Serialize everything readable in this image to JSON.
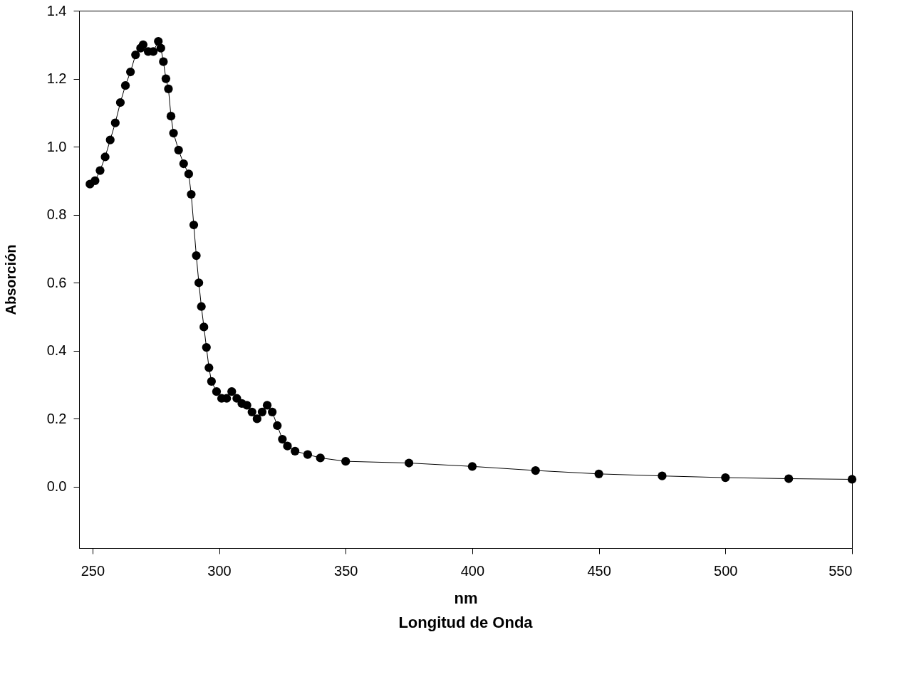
{
  "chart_data": {
    "type": "line",
    "xlabel": "nm",
    "ylabel": "Absorción",
    "annotations": [
      "Longitud de Onda"
    ],
    "x": [
      249,
      251,
      253,
      255,
      257,
      259,
      261,
      263,
      265,
      267,
      269,
      270,
      272,
      274,
      276,
      277,
      278,
      279,
      280,
      281,
      282,
      284,
      286,
      288,
      289,
      290,
      291,
      292,
      293,
      294,
      295,
      296,
      297,
      299,
      301,
      303,
      305,
      307,
      309,
      311,
      313,
      315,
      317,
      319,
      321,
      323,
      325,
      327,
      330,
      335,
      340,
      350,
      375,
      400,
      425,
      450,
      475,
      500,
      525,
      550
    ],
    "series": [
      {
        "color": "#000000",
        "values": [
          0.89,
          0.9,
          0.93,
          0.97,
          1.02,
          1.07,
          1.13,
          1.18,
          1.22,
          1.27,
          1.29,
          1.3,
          1.28,
          1.28,
          1.31,
          1.29,
          1.25,
          1.2,
          1.17,
          1.09,
          1.04,
          0.99,
          0.95,
          0.92,
          0.86,
          0.77,
          0.68,
          0.6,
          0.53,
          0.47,
          0.41,
          0.35,
          0.31,
          0.28,
          0.26,
          0.26,
          0.28,
          0.26,
          0.245,
          0.24,
          0.22,
          0.2,
          0.22,
          0.24,
          0.22,
          0.18,
          0.14,
          0.12,
          0.105,
          0.095,
          0.085,
          0.075,
          0.07,
          0.06,
          0.048,
          0.038,
          0.032,
          0.027,
          0.024,
          0.022
        ]
      }
    ],
    "xlim": [
      244.7,
      550
    ],
    "ylim": [
      -0.18,
      1.4
    ],
    "xticks": [
      250,
      300,
      350,
      400,
      450,
      500,
      550
    ],
    "yticks": [
      {
        "value": 0,
        "label": "0.0"
      },
      {
        "value": 0.2,
        "label": "0.2"
      },
      {
        "value": 0.4,
        "label": "0.4"
      },
      {
        "value": 0.6,
        "label": "0.6"
      },
      {
        "value": 0.8,
        "label": "0.8"
      },
      {
        "value": 1.0,
        "label": "1.0"
      },
      {
        "value": 1.2,
        "label": "1.2"
      },
      {
        "value": 1.4,
        "label": "1.4"
      }
    ],
    "grid": false,
    "marker": "circle",
    "line_style": "solid"
  }
}
